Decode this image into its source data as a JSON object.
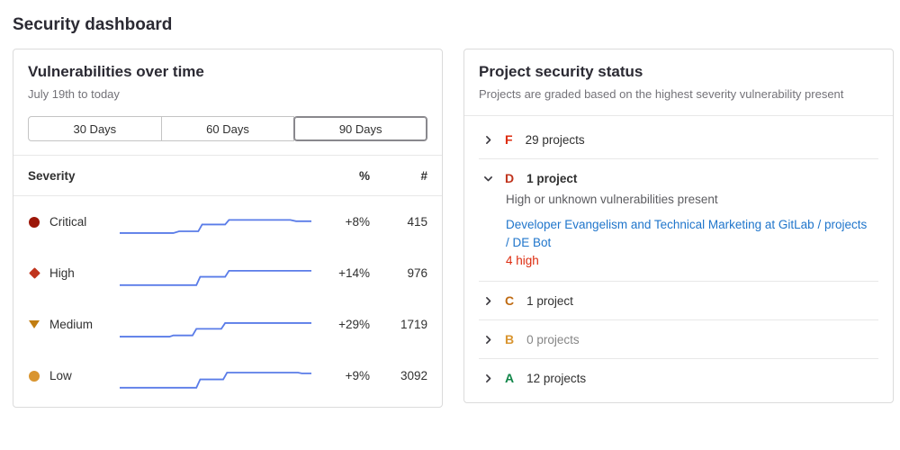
{
  "page": {
    "title": "Security dashboard"
  },
  "vuln_panel": {
    "title": "Vulnerabilities over time",
    "subtitle": "July 19th to today",
    "range_buttons": [
      {
        "label": "30 Days",
        "selected": false
      },
      {
        "label": "60 Days",
        "selected": false
      },
      {
        "label": "90 Days",
        "selected": true
      }
    ],
    "columns": {
      "severity": "Severity",
      "percent": "%",
      "count": "#"
    }
  },
  "chart_data": {
    "type": "line",
    "title": "Vulnerabilities over time",
    "x_range": "July 19th to today (90 days)",
    "line_color": "#5a7ce8",
    "grid": false,
    "legend_position": "none",
    "note": "points are [x, value] normalized 0-100; sparklines are step lines of vulnerability counts over 90 days",
    "series": [
      {
        "name": "Critical",
        "icon": "circle",
        "color": "#9c1608",
        "change_percent": "+8%",
        "count": 415,
        "points": [
          [
            0,
            18
          ],
          [
            28,
            18
          ],
          [
            31,
            25
          ],
          [
            41,
            25
          ],
          [
            43,
            52
          ],
          [
            55,
            52
          ],
          [
            57,
            70
          ],
          [
            89,
            70
          ],
          [
            92,
            65
          ],
          [
            100,
            65
          ]
        ]
      },
      {
        "name": "High",
        "icon": "diamond",
        "color": "#c0341d",
        "change_percent": "+14%",
        "count": 976,
        "points": [
          [
            0,
            15
          ],
          [
            40,
            15
          ],
          [
            42,
            48
          ],
          [
            55,
            48
          ],
          [
            57,
            72
          ],
          [
            100,
            72
          ]
        ]
      },
      {
        "name": "Medium",
        "icon": "triangle-down",
        "color": "#c17d10",
        "change_percent": "+29%",
        "count": 1719,
        "points": [
          [
            0,
            14
          ],
          [
            26,
            14
          ],
          [
            28,
            19
          ],
          [
            38,
            19
          ],
          [
            40,
            45
          ],
          [
            53,
            45
          ],
          [
            55,
            68
          ],
          [
            100,
            68
          ]
        ]
      },
      {
        "name": "Low",
        "icon": "circle",
        "color": "#d99530",
        "change_percent": "+9%",
        "count": 3092,
        "points": [
          [
            0,
            15
          ],
          [
            40,
            15
          ],
          [
            42,
            48
          ],
          [
            54,
            48
          ],
          [
            56,
            75
          ],
          [
            93,
            75
          ],
          [
            95,
            72
          ],
          [
            100,
            72
          ]
        ]
      }
    ]
  },
  "status_panel": {
    "title": "Project security status",
    "subtitle": "Projects are graded based on the highest severity vulnerability present",
    "link_color": "#1f75cb",
    "grades": [
      {
        "letter": "F",
        "color": "#dd2b0e",
        "count_label": "29 projects",
        "expanded": false
      },
      {
        "letter": "D",
        "color": "#c0341d",
        "count_label": "1 project",
        "expanded": true,
        "description": "High or unknown vulnerabilities present",
        "project_link": "Developer Evangelism and Technical Marketing at GitLab / projects / DE Bot",
        "severity_counts": "4 high",
        "severity_counts_color": "#dd2b0e"
      },
      {
        "letter": "C",
        "color": "#bf6b13",
        "count_label": "1 project",
        "expanded": false
      },
      {
        "letter": "B",
        "color": "#d99530",
        "count_label": "0 projects",
        "expanded": false,
        "muted": true
      },
      {
        "letter": "A",
        "color": "#108548",
        "count_label": "12 projects",
        "expanded": false
      }
    ]
  }
}
